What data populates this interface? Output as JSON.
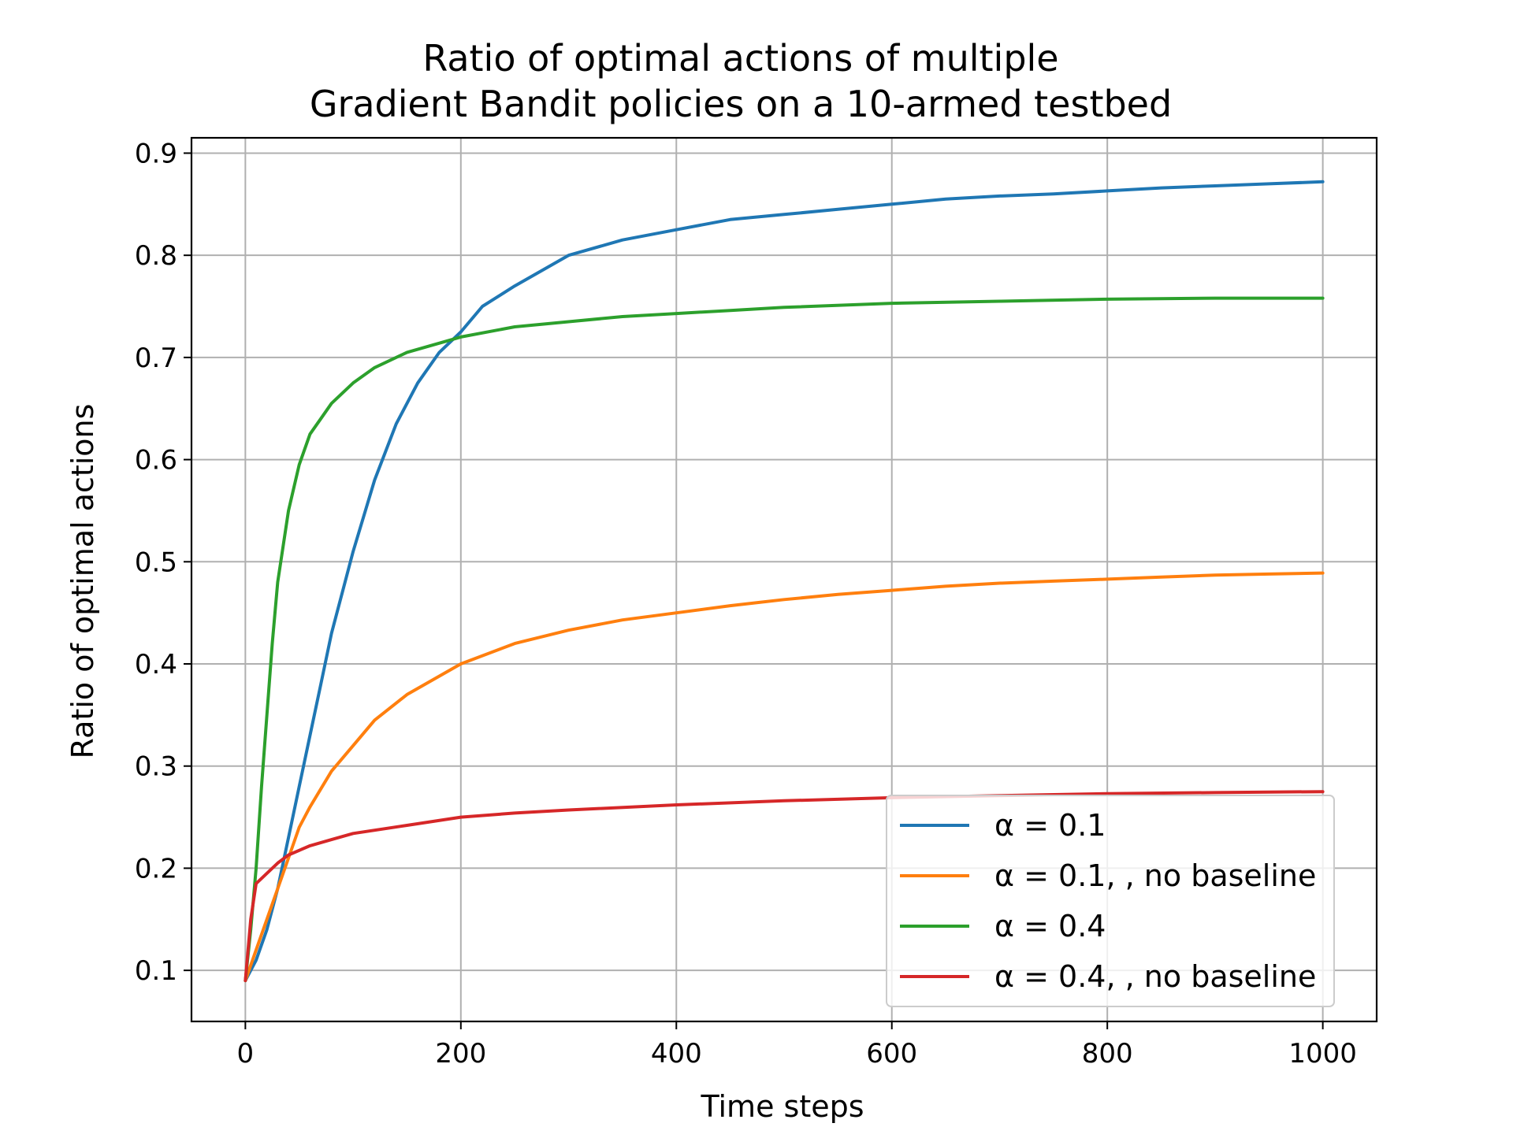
{
  "chart_data": {
    "type": "line",
    "title": [
      "Ratio of optimal actions of multiple",
      "Gradient Bandit policies on a 10-armed testbed"
    ],
    "xlabel": "Time steps",
    "ylabel": "Ratio of optimal actions",
    "xlim": [
      -50,
      1050
    ],
    "ylim": [
      0.05,
      0.915
    ],
    "xticks": [
      0,
      200,
      400,
      600,
      800,
      1000
    ],
    "yticks": [
      0.1,
      0.2,
      0.3,
      0.4,
      0.5,
      0.6,
      0.7,
      0.8,
      0.9
    ],
    "xtick_labels": [
      "0",
      "200",
      "400",
      "600",
      "800",
      "1000"
    ],
    "ytick_labels": [
      "0.1",
      "0.2",
      "0.3",
      "0.4",
      "0.5",
      "0.6",
      "0.7",
      "0.8",
      "0.9"
    ],
    "grid": true,
    "legend_position": "lower-right",
    "series": [
      {
        "name": "α = 0.1",
        "color": "#1f77b4",
        "x": [
          0,
          10,
          20,
          30,
          40,
          50,
          60,
          70,
          80,
          90,
          100,
          120,
          140,
          160,
          180,
          200,
          220,
          250,
          300,
          350,
          400,
          450,
          500,
          550,
          600,
          650,
          700,
          750,
          800,
          850,
          900,
          950,
          1000
        ],
        "values": [
          0.09,
          0.11,
          0.14,
          0.18,
          0.23,
          0.28,
          0.33,
          0.38,
          0.43,
          0.47,
          0.51,
          0.58,
          0.635,
          0.675,
          0.705,
          0.725,
          0.75,
          0.77,
          0.8,
          0.815,
          0.825,
          0.835,
          0.84,
          0.845,
          0.85,
          0.855,
          0.858,
          0.86,
          0.863,
          0.866,
          0.868,
          0.87,
          0.872
        ]
      },
      {
        "name": "α = 0.1, , no baseline",
        "color": "#ff7f0e",
        "x": [
          0,
          10,
          20,
          30,
          40,
          50,
          60,
          80,
          100,
          120,
          150,
          200,
          250,
          300,
          350,
          400,
          450,
          500,
          550,
          600,
          650,
          700,
          750,
          800,
          850,
          900,
          950,
          1000
        ],
        "values": [
          0.09,
          0.12,
          0.15,
          0.18,
          0.21,
          0.24,
          0.26,
          0.295,
          0.32,
          0.345,
          0.37,
          0.4,
          0.42,
          0.433,
          0.443,
          0.45,
          0.457,
          0.463,
          0.468,
          0.472,
          0.476,
          0.479,
          0.481,
          0.483,
          0.485,
          0.487,
          0.488,
          0.489
        ]
      },
      {
        "name": "α = 0.4",
        "color": "#2ca02c",
        "x": [
          0,
          5,
          10,
          15,
          20,
          25,
          30,
          40,
          50,
          60,
          70,
          80,
          100,
          120,
          150,
          200,
          250,
          300,
          350,
          400,
          450,
          500,
          600,
          700,
          800,
          900,
          1000
        ],
        "values": [
          0.09,
          0.14,
          0.2,
          0.28,
          0.35,
          0.42,
          0.48,
          0.55,
          0.595,
          0.625,
          0.64,
          0.655,
          0.675,
          0.69,
          0.705,
          0.72,
          0.73,
          0.735,
          0.74,
          0.743,
          0.746,
          0.749,
          0.753,
          0.755,
          0.757,
          0.758,
          0.758
        ]
      },
      {
        "name": "α = 0.4, , no baseline",
        "color": "#d62728",
        "x": [
          0,
          5,
          10,
          20,
          30,
          40,
          60,
          80,
          100,
          150,
          200,
          250,
          300,
          400,
          500,
          600,
          700,
          800,
          900,
          1000
        ],
        "values": [
          0.09,
          0.15,
          0.185,
          0.195,
          0.205,
          0.213,
          0.222,
          0.228,
          0.234,
          0.242,
          0.25,
          0.254,
          0.257,
          0.262,
          0.266,
          0.269,
          0.271,
          0.273,
          0.274,
          0.275
        ]
      }
    ]
  }
}
